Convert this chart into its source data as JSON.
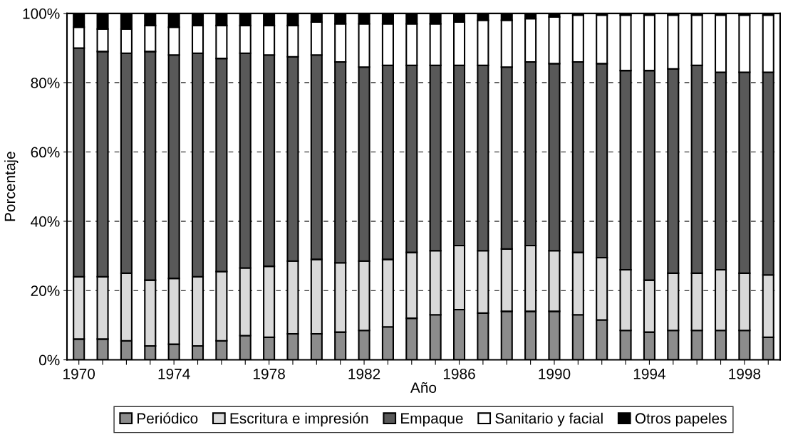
{
  "chart_data": {
    "type": "bar",
    "stacked": true,
    "xlabel": "Año",
    "ylabel": "Porcentaje",
    "categories": [
      "1970",
      null,
      null,
      null,
      "1974",
      null,
      null,
      null,
      "1978",
      null,
      null,
      null,
      "1982",
      null,
      null,
      null,
      "1986",
      null,
      null,
      null,
      "1990",
      null,
      null,
      null,
      "1994",
      null,
      null,
      null,
      "1998",
      null
    ],
    "series": [
      {
        "name": "Periódico",
        "color": "#8c8c8c",
        "values": [
          6,
          6,
          5.5,
          4,
          4.5,
          4,
          5.5,
          7,
          6.5,
          7.5,
          7.5,
          8,
          8.5,
          9.5,
          12,
          13,
          14.5,
          13.5,
          14,
          14,
          14,
          13,
          11.5,
          8.5,
          8,
          8.5,
          8.5,
          8.5,
          8.5,
          6.5
        ]
      },
      {
        "name": "Escritura e impresión",
        "color": "#d9d9d9",
        "values": [
          18,
          18,
          19.5,
          19,
          19,
          20,
          20,
          19.5,
          20.5,
          21,
          21.5,
          20,
          20,
          19.5,
          19,
          18.5,
          18.5,
          18,
          18,
          19,
          17.5,
          18,
          18,
          17.5,
          15,
          16.5,
          16.5,
          17.5,
          16.5,
          18
        ]
      },
      {
        "name": "Empaque",
        "color": "#595959",
        "values": [
          66,
          65,
          63.5,
          66,
          64.5,
          64.5,
          61.5,
          62,
          61,
          59,
          59,
          58,
          56,
          56,
          54,
          53.5,
          52,
          53.5,
          52.5,
          53,
          54,
          55,
          56,
          57.5,
          60.5,
          59,
          60,
          57,
          58,
          58.5
        ]
      },
      {
        "name": "Sanitario y facial",
        "color": "#ffffff",
        "values": [
          6,
          6.5,
          7,
          7.5,
          8,
          8,
          9.5,
          8,
          8.5,
          9,
          9.5,
          11,
          12.5,
          12,
          12,
          12,
          12.5,
          13,
          13.5,
          12.5,
          13.5,
          13.5,
          14,
          16,
          16,
          15.5,
          14.5,
          16.5,
          16.5,
          16.5
        ]
      },
      {
        "name": "Otros papeles",
        "color": "#000000",
        "values": [
          4,
          4.5,
          4.5,
          3.5,
          4,
          3.5,
          3.5,
          3.5,
          3.5,
          3.5,
          2.5,
          3,
          3,
          3,
          3,
          3,
          2.5,
          2,
          2,
          1.5,
          1,
          0.5,
          0.5,
          0.5,
          0.5,
          0.5,
          0.5,
          0.5,
          0.5,
          0.5
        ]
      }
    ],
    "ylim": [
      0,
      100
    ],
    "yticks": [
      {
        "value": 0,
        "label": "0%"
      },
      {
        "value": 20,
        "label": "20%"
      },
      {
        "value": 40,
        "label": "40%"
      },
      {
        "value": 60,
        "label": "60%"
      },
      {
        "value": 80,
        "label": "80%"
      },
      {
        "value": 100,
        "label": "100%"
      }
    ],
    "grid": "y",
    "legend": "bottom"
  }
}
